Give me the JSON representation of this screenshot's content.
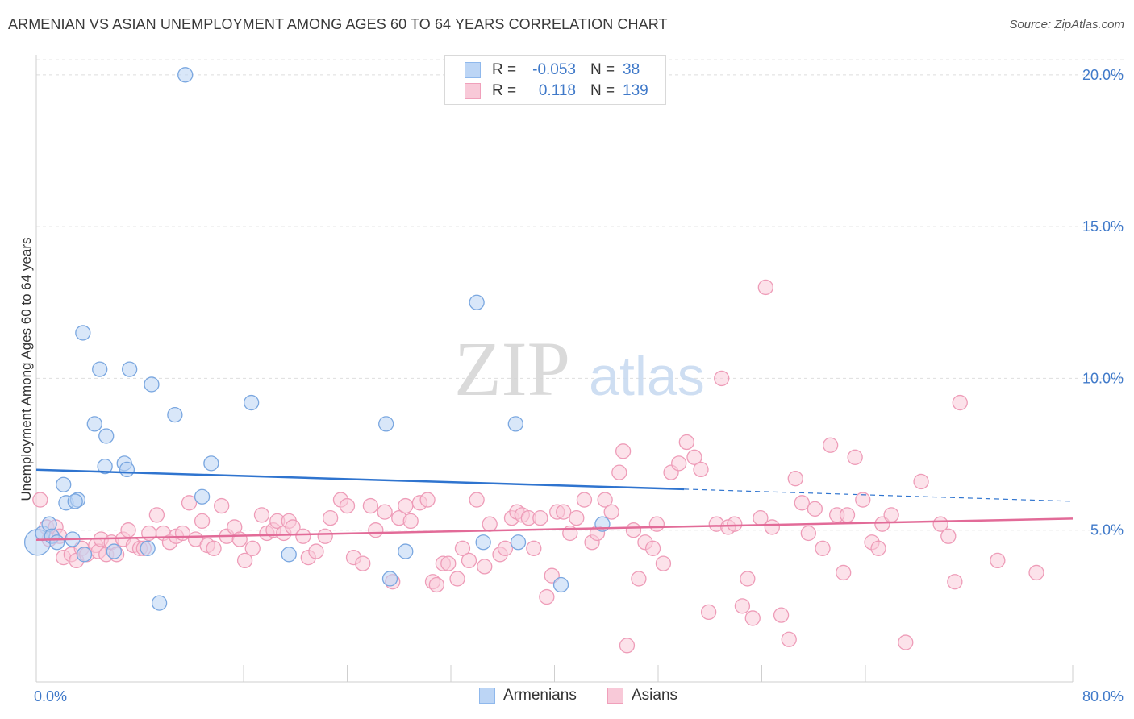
{
  "title": "ARMENIAN VS ASIAN UNEMPLOYMENT AMONG AGES 60 TO 64 YEARS CORRELATION CHART",
  "source": "Source: ZipAtlas.com",
  "watermark": {
    "zip": "ZIP",
    "atlas": "atlas"
  },
  "legend_top": {
    "rows": [
      {
        "r_key": "R =",
        "r_value": "-0.053",
        "n_key": "N =",
        "n_value": "38",
        "color": "#8fb8ec",
        "fill": "#bcd5f5"
      },
      {
        "r_key": "R =",
        "r_value": "0.118",
        "n_key": "N =",
        "n_value": "139",
        "color": "#f0a0bb",
        "fill": "#f8c9d8"
      }
    ]
  },
  "legend_bottom": {
    "armenians": "Armenians",
    "asians": "Asians"
  },
  "colors": {
    "armenian_stroke": "#7aa7e0",
    "armenian_fill": "#b9d3f4",
    "asian_stroke": "#ee9cb8",
    "asian_fill": "#f9cad9",
    "armenian_line": "#2f74cf",
    "asian_line": "#e26b98",
    "tick_label": "#3f79c9"
  },
  "chart_data": {
    "type": "scatter",
    "title": "ARMENIAN VS ASIAN UNEMPLOYMENT AMONG AGES 60 TO 64 YEARS CORRELATION CHART",
    "xlabel": "",
    "ylabel": "Unemployment Among Ages 60 to 64 years",
    "xlim": [
      0,
      80
    ],
    "ylim": [
      0,
      20.5
    ],
    "x_tick_labels": [
      "0.0%",
      "80.0%"
    ],
    "y_ticks": [
      5,
      10,
      15,
      20
    ],
    "y_tick_labels": [
      "5.0%",
      "10.0%",
      "15.0%",
      "20.0%"
    ],
    "grid": "horizontal dashed",
    "legend": "top-center",
    "series": [
      {
        "name": "Armenians",
        "r": -0.053,
        "n": 38,
        "trend": {
          "x0": 0,
          "y0": 6.99,
          "x1": 50,
          "y1": 6.35,
          "dashed_to_x": 80,
          "dashed_to_y": 5.95
        },
        "points": [
          [
            0.1,
            4.6
          ],
          [
            0.5,
            4.9
          ],
          [
            1.0,
            5.2
          ],
          [
            1.2,
            4.8
          ],
          [
            1.6,
            4.6
          ],
          [
            2.1,
            6.5
          ],
          [
            2.3,
            5.9
          ],
          [
            3.2,
            6.0
          ],
          [
            3.0,
            5.95
          ],
          [
            2.8,
            4.7
          ],
          [
            3.7,
            4.2
          ],
          [
            3.6,
            11.5
          ],
          [
            4.5,
            8.5
          ],
          [
            4.9,
            10.3
          ],
          [
            5.4,
            8.1
          ],
          [
            5.3,
            7.1
          ],
          [
            6.8,
            7.2
          ],
          [
            7.0,
            7.0
          ],
          [
            7.2,
            10.3
          ],
          [
            6.0,
            4.3
          ],
          [
            8.6,
            4.4
          ],
          [
            8.9,
            9.8
          ],
          [
            9.5,
            2.6
          ],
          [
            10.7,
            8.8
          ],
          [
            11.5,
            20.0
          ],
          [
            12.8,
            6.1
          ],
          [
            13.5,
            7.2
          ],
          [
            16.6,
            9.2
          ],
          [
            19.5,
            4.2
          ],
          [
            27.0,
            8.5
          ],
          [
            27.3,
            3.4
          ],
          [
            28.5,
            4.3
          ],
          [
            34.0,
            12.5
          ],
          [
            34.5,
            4.6
          ],
          [
            37.0,
            8.5
          ],
          [
            37.2,
            4.6
          ],
          [
            40.5,
            3.2
          ],
          [
            43.7,
            5.2
          ]
        ]
      },
      {
        "name": "Asians",
        "r": 0.118,
        "n": 139,
        "trend": {
          "x0": 0,
          "y0": 4.68,
          "x1": 80,
          "y1": 5.38
        },
        "points": [
          [
            0.3,
            6.0
          ],
          [
            0.8,
            5.1
          ],
          [
            1.0,
            4.7
          ],
          [
            1.5,
            5.1
          ],
          [
            1.8,
            4.8
          ],
          [
            2.1,
            4.1
          ],
          [
            2.7,
            4.2
          ],
          [
            3.1,
            4.0
          ],
          [
            3.5,
            4.4
          ],
          [
            3.9,
            4.2
          ],
          [
            4.6,
            4.5
          ],
          [
            4.8,
            4.3
          ],
          [
            5.0,
            4.7
          ],
          [
            5.4,
            4.2
          ],
          [
            5.8,
            4.6
          ],
          [
            6.2,
            4.2
          ],
          [
            6.7,
            4.7
          ],
          [
            7.1,
            5.0
          ],
          [
            7.5,
            4.5
          ],
          [
            8.0,
            4.4
          ],
          [
            8.3,
            4.4
          ],
          [
            8.7,
            4.9
          ],
          [
            9.3,
            5.5
          ],
          [
            9.8,
            4.9
          ],
          [
            10.3,
            4.6
          ],
          [
            10.8,
            4.8
          ],
          [
            11.3,
            4.9
          ],
          [
            11.8,
            5.9
          ],
          [
            12.3,
            4.7
          ],
          [
            12.8,
            5.3
          ],
          [
            13.2,
            4.5
          ],
          [
            13.7,
            4.4
          ],
          [
            14.3,
            5.8
          ],
          [
            14.7,
            4.8
          ],
          [
            15.3,
            5.1
          ],
          [
            15.7,
            4.7
          ],
          [
            16.1,
            4.0
          ],
          [
            16.7,
            4.4
          ],
          [
            17.4,
            5.5
          ],
          [
            17.8,
            4.9
          ],
          [
            18.3,
            5.0
          ],
          [
            18.6,
            5.3
          ],
          [
            19.1,
            4.9
          ],
          [
            19.5,
            5.3
          ],
          [
            19.8,
            5.1
          ],
          [
            20.6,
            4.8
          ],
          [
            21.0,
            4.1
          ],
          [
            21.6,
            4.3
          ],
          [
            22.3,
            4.8
          ],
          [
            22.7,
            5.4
          ],
          [
            23.5,
            6.0
          ],
          [
            24.0,
            5.8
          ],
          [
            24.5,
            4.1
          ],
          [
            25.2,
            3.9
          ],
          [
            25.8,
            5.8
          ],
          [
            26.2,
            5.0
          ],
          [
            26.9,
            5.6
          ],
          [
            27.5,
            3.3
          ],
          [
            28.0,
            5.4
          ],
          [
            28.5,
            5.8
          ],
          [
            28.9,
            5.3
          ],
          [
            29.6,
            5.9
          ],
          [
            30.2,
            6.0
          ],
          [
            30.6,
            3.3
          ],
          [
            30.9,
            3.2
          ],
          [
            31.4,
            3.9
          ],
          [
            31.8,
            3.9
          ],
          [
            32.5,
            3.4
          ],
          [
            32.9,
            4.4
          ],
          [
            33.4,
            4.0
          ],
          [
            34.0,
            6.0
          ],
          [
            34.6,
            3.8
          ],
          [
            35.0,
            5.2
          ],
          [
            35.8,
            4.2
          ],
          [
            36.2,
            4.4
          ],
          [
            36.7,
            5.4
          ],
          [
            37.1,
            5.6
          ],
          [
            37.5,
            5.5
          ],
          [
            38.0,
            5.4
          ],
          [
            38.4,
            4.4
          ],
          [
            38.9,
            5.4
          ],
          [
            39.4,
            2.8
          ],
          [
            39.8,
            3.5
          ],
          [
            40.2,
            5.6
          ],
          [
            40.7,
            5.6
          ],
          [
            41.2,
            4.9
          ],
          [
            41.7,
            5.4
          ],
          [
            42.3,
            6.0
          ],
          [
            42.9,
            4.6
          ],
          [
            43.3,
            4.9
          ],
          [
            43.9,
            6.0
          ],
          [
            44.4,
            5.6
          ],
          [
            45.0,
            6.9
          ],
          [
            45.3,
            7.6
          ],
          [
            45.6,
            1.2
          ],
          [
            46.1,
            5.0
          ],
          [
            46.5,
            3.4
          ],
          [
            47.0,
            4.6
          ],
          [
            47.6,
            4.4
          ],
          [
            47.9,
            5.2
          ],
          [
            48.4,
            3.9
          ],
          [
            49.0,
            6.9
          ],
          [
            49.6,
            7.2
          ],
          [
            50.2,
            7.9
          ],
          [
            50.8,
            7.4
          ],
          [
            51.3,
            7.0
          ],
          [
            51.9,
            2.3
          ],
          [
            52.5,
            5.2
          ],
          [
            52.9,
            10.0
          ],
          [
            53.4,
            5.1
          ],
          [
            53.9,
            5.2
          ],
          [
            54.5,
            2.5
          ],
          [
            54.9,
            3.4
          ],
          [
            55.3,
            2.1
          ],
          [
            55.9,
            5.4
          ],
          [
            56.3,
            13.0
          ],
          [
            56.8,
            5.1
          ],
          [
            57.5,
            2.2
          ],
          [
            58.1,
            1.4
          ],
          [
            58.6,
            6.7
          ],
          [
            59.1,
            5.9
          ],
          [
            59.6,
            4.9
          ],
          [
            60.1,
            5.7
          ],
          [
            60.7,
            4.4
          ],
          [
            61.3,
            7.8
          ],
          [
            61.8,
            5.5
          ],
          [
            62.3,
            3.6
          ],
          [
            62.6,
            5.5
          ],
          [
            63.2,
            7.4
          ],
          [
            63.8,
            6.0
          ],
          [
            64.5,
            4.6
          ],
          [
            65.0,
            4.4
          ],
          [
            65.3,
            5.2
          ],
          [
            66.0,
            5.5
          ],
          [
            67.1,
            1.3
          ],
          [
            68.3,
            6.6
          ],
          [
            69.8,
            5.2
          ],
          [
            70.4,
            4.8
          ],
          [
            70.9,
            3.3
          ],
          [
            71.3,
            9.2
          ],
          [
            74.2,
            4.0
          ],
          [
            77.2,
            3.6
          ]
        ]
      }
    ]
  }
}
